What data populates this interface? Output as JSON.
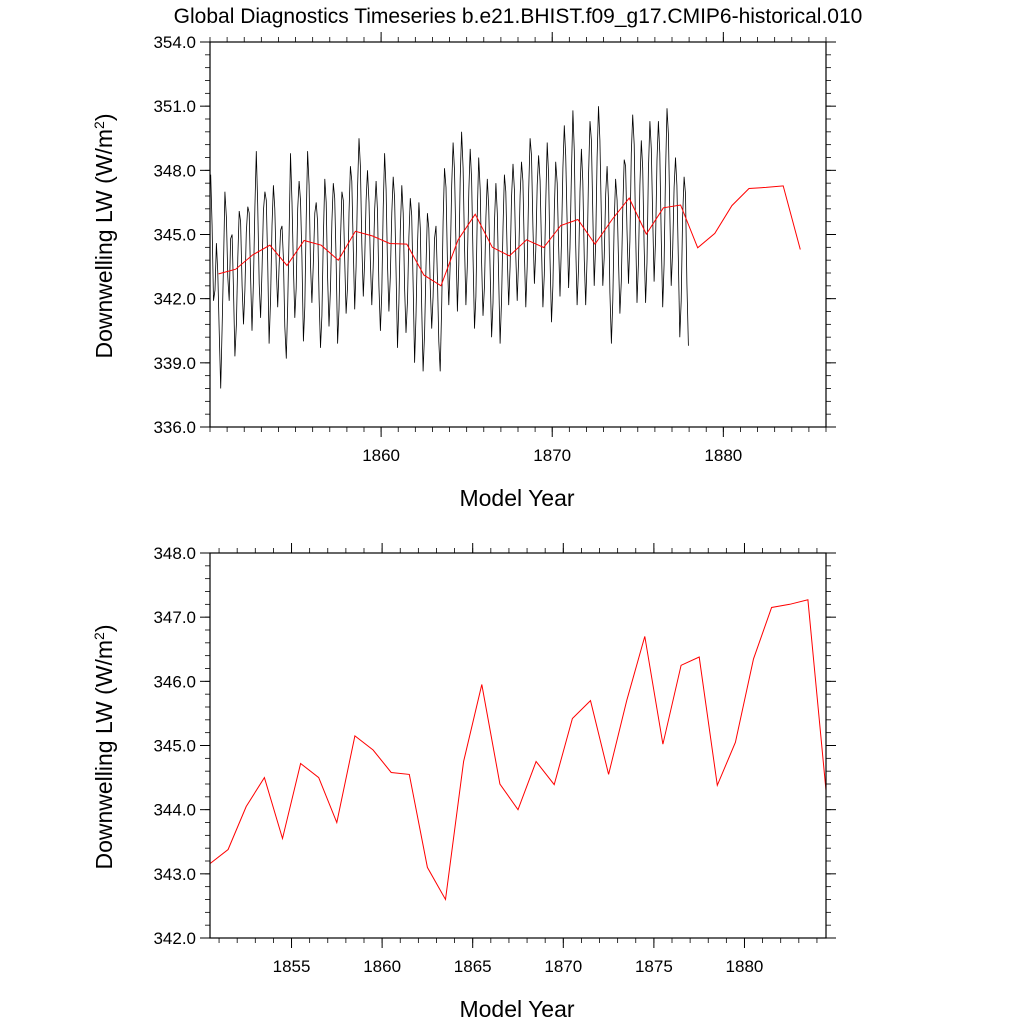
{
  "title": "Global Diagnostics Timeseries b.e21.BHIST.f09_g17.CMIP6-historical.010",
  "chart_data": [
    {
      "type": "line",
      "panel": "top",
      "xlabel": "Model Year",
      "ylabel": "Downwelling LW (W/m",
      "ylabel_sup": "2",
      "ylabel_tail": ")",
      "xlim": [
        1850.0,
        1886.0
      ],
      "ylim": [
        336.0,
        354.0
      ],
      "xticks": [
        1860,
        1870,
        1880
      ],
      "xtick_labels": [
        "1860",
        "1870",
        "1880"
      ],
      "yticks": [
        336,
        339,
        342,
        345,
        348,
        351,
        354
      ],
      "ytick_labels": [
        "336.0",
        "339.0",
        "342.0",
        "345.0",
        "348.0",
        "351.0",
        "354.0"
      ],
      "series": [
        {
          "color": "#000000",
          "kind": "monthly",
          "x_start": 1850.04,
          "x_step": 0.08333,
          "values": [
            347.8,
            345.4,
            341.9,
            342.4,
            344.6,
            343.2,
            340.5,
            337.8,
            340.6,
            343.6,
            347.0,
            345.8,
            343.0,
            341.9,
            344.8,
            345.0,
            342.4,
            339.3,
            340.8,
            343.9,
            346.1,
            345.6,
            342.6,
            340.8,
            342.4,
            345.1,
            346.3,
            346.0,
            343.0,
            340.5,
            342.9,
            346.3,
            348.9,
            346.4,
            342.7,
            341.1,
            343.3,
            346.1,
            347.0,
            346.6,
            343.7,
            339.9,
            342.0,
            345.4,
            347.3,
            346.2,
            343.4,
            341.6,
            343.5,
            345.2,
            345.4,
            343.9,
            340.7,
            339.2,
            341.7,
            345.0,
            348.8,
            346.5,
            343.5,
            341.1,
            342.5,
            346.2,
            347.5,
            346.6,
            344.0,
            340.0,
            341.6,
            345.7,
            348.9,
            347.3,
            343.6,
            341.8,
            343.6,
            346.0,
            346.5,
            345.6,
            342.0,
            339.7,
            341.2,
            344.8,
            347.6,
            346.5,
            343.0,
            340.7,
            342.5,
            345.6,
            347.4,
            346.7,
            343.6,
            339.9,
            341.5,
            344.6,
            347.0,
            346.6,
            343.8,
            341.3,
            342.6,
            346.0,
            348.2,
            347.5,
            344.3,
            341.5,
            343.5,
            347.1,
            349.5,
            348.2,
            344.6,
            342.1,
            343.8,
            346.6,
            348.0,
            346.5,
            343.7,
            341.7,
            343.5,
            346.2,
            347.5,
            346.1,
            342.6,
            340.5,
            342.3,
            346.2,
            348.8,
            347.1,
            343.6,
            341.4,
            343.0,
            346.0,
            347.7,
            346.7,
            343.4,
            339.7,
            341.8,
            345.2,
            347.3,
            346.0,
            342.5,
            340.4,
            341.9,
            344.9,
            346.7,
            345.9,
            342.5,
            339.0,
            341.2,
            344.4,
            346.5,
            345.3,
            341.6,
            338.6,
            340.4,
            343.5,
            346.0,
            345.3,
            342.5,
            340.6,
            342.1,
            344.8,
            345.4,
            343.0,
            340.0,
            338.6,
            341.7,
            345.6,
            348.1,
            347.2,
            343.8,
            341.7,
            343.6,
            347.3,
            349.3,
            348.0,
            344.7,
            341.4,
            343.6,
            347.6,
            349.8,
            348.1,
            344.5,
            341.7,
            343.5,
            347.0,
            349.0,
            347.6,
            344.0,
            340.6,
            342.1,
            346.0,
            348.6,
            347.1,
            343.7,
            341.2,
            342.6,
            345.8,
            347.6,
            346.3,
            343.2,
            340.2,
            341.8,
            345.5,
            347.4,
            346.0,
            342.9,
            339.9,
            342.0,
            345.3,
            347.8,
            347.0,
            343.9,
            341.7,
            343.5,
            346.7,
            348.3,
            347.1,
            344.0,
            341.9,
            343.9,
            346.8,
            348.4,
            347.5,
            344.1,
            341.6,
            343.5,
            347.1,
            349.5,
            348.7,
            345.4,
            342.7,
            344.3,
            347.3,
            348.7,
            347.5,
            344.4,
            341.6,
            343.1,
            346.6,
            349.3,
            347.8,
            343.9,
            340.9,
            342.6,
            346.1,
            348.4,
            347.4,
            344.5,
            342.1,
            344.5,
            348.1,
            350.1,
            348.7,
            345.4,
            342.5,
            344.4,
            347.8,
            350.8,
            348.9,
            344.5,
            341.7,
            343.5,
            347.0,
            349.0,
            347.5,
            343.8,
            341.7,
            343.9,
            347.7,
            350.3,
            349.4,
            346.0,
            342.6,
            344.6,
            348.6,
            351.0,
            349.4,
            345.7,
            342.6,
            343.9,
            346.9,
            348.2,
            346.6,
            342.3,
            339.9,
            341.9,
            345.6,
            347.6,
            346.6,
            343.8,
            341.3,
            342.8,
            346.2,
            348.5,
            348.2,
            345.2,
            342.7,
            344.7,
            348.8,
            350.6,
            349.2,
            345.2,
            341.8,
            343.6,
            347.3,
            349.4,
            348.1,
            344.5,
            341.8,
            343.7,
            348.0,
            350.3,
            349.0,
            345.8,
            342.8,
            344.8,
            348.5,
            350.3,
            348.8,
            344.7,
            341.6,
            343.6,
            347.8,
            350.9,
            349.7,
            346.1,
            342.6,
            344.3,
            347.2,
            348.6,
            347.3,
            343.7,
            340.2,
            341.9,
            345.8,
            347.7,
            346.9,
            342.7,
            339.8
          ]
        },
        {
          "color": "#ff0000",
          "kind": "annual",
          "x": [
            1850.5,
            1851.5,
            1852.5,
            1853.5,
            1854.5,
            1855.5,
            1856.5,
            1857.5,
            1858.5,
            1859.5,
            1860.5,
            1861.5,
            1862.5,
            1863.5,
            1864.5,
            1865.5,
            1866.5,
            1867.5,
            1868.5,
            1869.5,
            1870.5,
            1871.5,
            1872.5,
            1873.5,
            1874.5,
            1875.5,
            1876.5,
            1877.5,
            1878.5,
            1879.5,
            1880.5,
            1881.5,
            1882.5,
            1883.5,
            1884.5
          ],
          "values": [
            343.16,
            343.38,
            344.05,
            344.5,
            343.55,
            344.72,
            344.5,
            343.8,
            345.15,
            344.93,
            344.58,
            344.55,
            343.1,
            342.6,
            344.75,
            345.95,
            344.4,
            344.0,
            344.75,
            344.39,
            345.42,
            345.7,
            344.55,
            345.7,
            346.7,
            345.02,
            346.25,
            346.38,
            344.38,
            345.05,
            346.35,
            347.15,
            347.2,
            347.27,
            344.3
          ]
        }
      ]
    },
    {
      "type": "line",
      "panel": "bottom",
      "xlabel": "Model Year",
      "ylabel": "Downwelling LW (W/m",
      "ylabel_sup": "2",
      "ylabel_tail": ")",
      "xlim": [
        1850.5,
        1884.5
      ],
      "ylim": [
        342.0,
        348.0
      ],
      "xticks": [
        1855,
        1860,
        1865,
        1870,
        1875,
        1880
      ],
      "xtick_labels": [
        "1855",
        "1860",
        "1865",
        "1870",
        "1875",
        "1880"
      ],
      "yticks": [
        342,
        343,
        344,
        345,
        346,
        347,
        348
      ],
      "ytick_labels": [
        "342.0",
        "343.0",
        "344.0",
        "345.0",
        "346.0",
        "347.0",
        "348.0"
      ],
      "series": [
        {
          "color": "#ff0000",
          "kind": "annual",
          "x": [
            1850.5,
            1851.5,
            1852.5,
            1853.5,
            1854.5,
            1855.5,
            1856.5,
            1857.5,
            1858.5,
            1859.5,
            1860.5,
            1861.5,
            1862.5,
            1863.5,
            1864.5,
            1865.5,
            1866.5,
            1867.5,
            1868.5,
            1869.5,
            1870.5,
            1871.5,
            1872.5,
            1873.5,
            1874.5,
            1875.5,
            1876.5,
            1877.5,
            1878.5,
            1879.5,
            1880.5,
            1881.5,
            1882.5,
            1883.5,
            1884.5
          ],
          "values": [
            343.16,
            343.38,
            344.05,
            344.5,
            343.55,
            344.72,
            344.5,
            343.8,
            345.15,
            344.93,
            344.58,
            344.55,
            343.1,
            342.6,
            344.75,
            345.95,
            344.4,
            344.0,
            344.75,
            344.39,
            345.42,
            345.7,
            344.55,
            345.7,
            346.7,
            345.02,
            346.25,
            346.38,
            344.38,
            345.05,
            346.35,
            347.15,
            347.2,
            347.27,
            344.3
          ]
        }
      ]
    }
  ]
}
